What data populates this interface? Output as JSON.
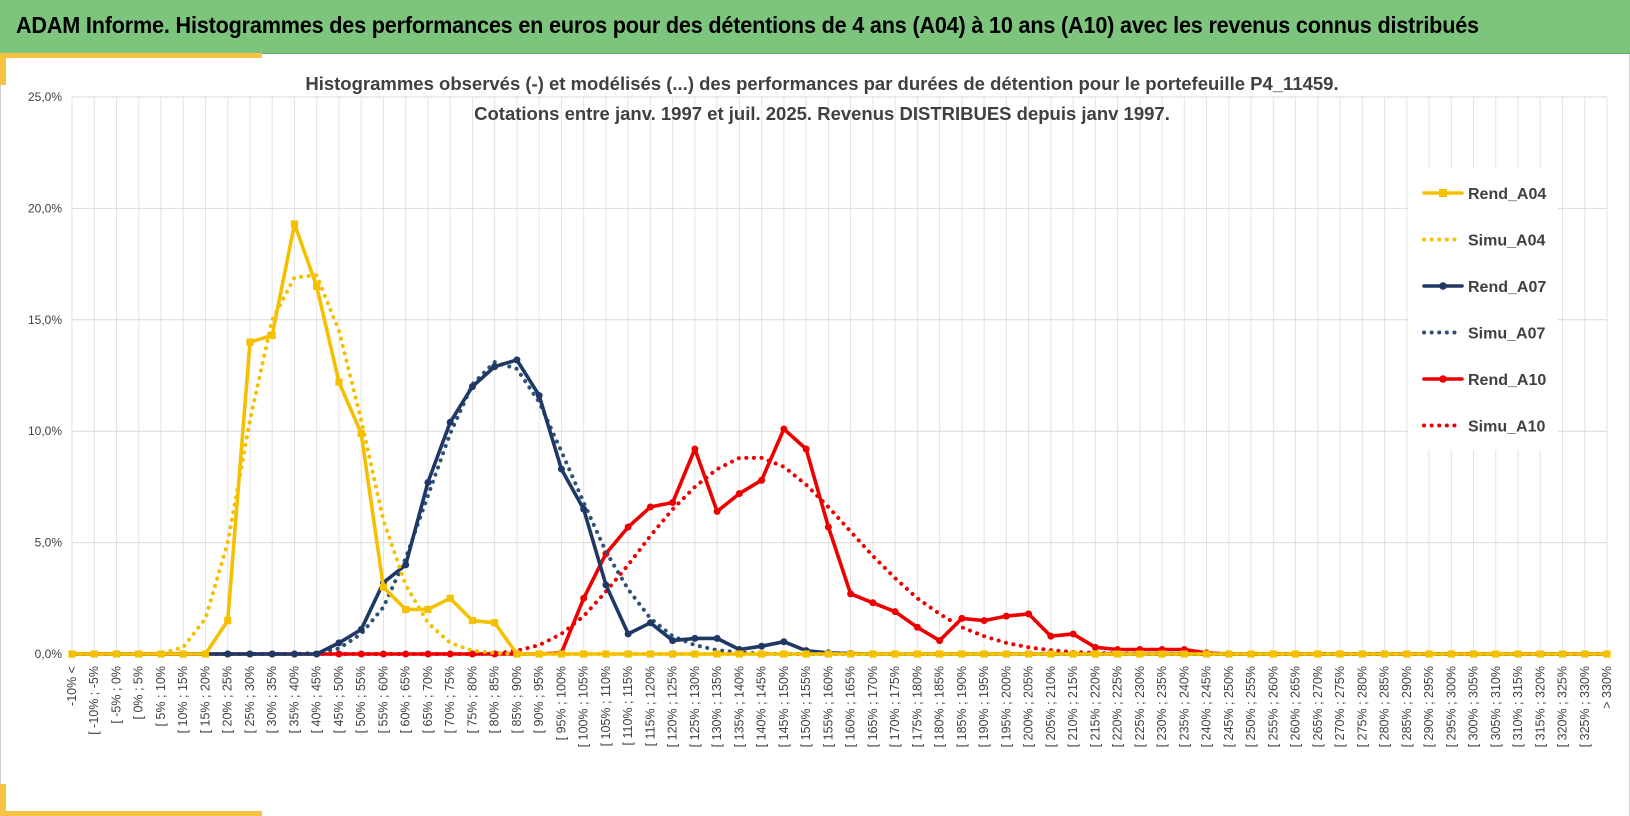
{
  "banner": {
    "title": "ADAM Informe. Histogrammes des performances en euros pour des détentions de 4 ans (A04) à 10 ans (A10) avec les revenus connus distribués"
  },
  "colors": {
    "banner_bg": "#7dc57d",
    "accent": "#f5c242",
    "A04": "#f5c000",
    "A07": "#1f3864",
    "A10": "#ee0000"
  },
  "chart_data": {
    "type": "line",
    "title": [
      "Histogrammes observés (-) et modélisés (...) des performances par durées de détention pour le portefeuille P4_11459.",
      "Cotations entre janv. 1997 et juil. 2025. Revenus DISTRIBUES depuis janv 1997."
    ],
    "xlabel": "",
    "ylabel": "",
    "ylim": [
      0,
      25
    ],
    "yticks": [
      "0,0%",
      "5,0%",
      "10,0%",
      "15,0%",
      "20,0%",
      "25,0%"
    ],
    "grid": true,
    "legend_position": "right",
    "categories": [
      "-10% <",
      "[ -10% ; -5%",
      "[ -5% ; 0%",
      "[ 0% ; 5%",
      "[ 5% ; 10%",
      "[ 10% ; 15%",
      "[ 15% ; 20%",
      "[ 20% ; 25%",
      "[ 25% ; 30%",
      "[ 30% ; 35%",
      "[ 35% ; 40%",
      "[ 40% ; 45%",
      "[ 45% ; 50%",
      "[ 50% ; 55%",
      "[ 55% ; 60%",
      "[ 60% ; 65%",
      "[ 65% ; 70%",
      "[ 70% ; 75%",
      "[ 75% ; 80%",
      "[ 80% ; 85%",
      "[ 85% ; 90%",
      "[ 90% ; 95%",
      "[ 95% ; 100%",
      "[ 100% ; 105%",
      "[ 105% ; 110%",
      "[ 110% ; 115%",
      "[ 115% ; 120%",
      "[ 120% ; 125%",
      "[ 125% ; 130%",
      "[ 130% ; 135%",
      "[ 135% ; 140%",
      "[ 140% ; 145%",
      "[ 145% ; 150%",
      "[ 150% ; 155%",
      "[ 155% ; 160%",
      "[ 160% ; 165%",
      "[ 165% ; 170%",
      "[ 170% ; 175%",
      "[ 175% ; 180%",
      "[ 180% ; 185%",
      "[ 185% ; 190%",
      "[ 190% ; 195%",
      "[ 195% ; 200%",
      "[ 200% ; 205%",
      "[ 205% ; 210%",
      "[ 210% ; 215%",
      "[ 215% ; 220%",
      "[ 220% ; 225%",
      "[ 225% ; 230%",
      "[ 230% ; 235%",
      "[ 235% ; 240%",
      "[ 240% ; 245%",
      "[ 245% ; 250%",
      "[ 250% ; 255%",
      "[ 255% ; 260%",
      "[ 260% ; 265%",
      "[ 265% ; 270%",
      "[ 270% ; 275%",
      "[ 275% ; 280%",
      "[ 280% ; 285%",
      "[ 285% ; 290%",
      "[ 290% ; 295%",
      "[ 295% ; 300%",
      "[ 300% ; 305%",
      "[ 305% ; 310%",
      "[ 310% ; 315%",
      "[ 315% ; 320%",
      "[ 320% ; 325%",
      "[ 325% ; 330%",
      "> 330%"
    ],
    "series": [
      {
        "name": "Rend_A04",
        "style": "solid",
        "color": "#f5c000",
        "marker": "square",
        "values": [
          0,
          0,
          0,
          0,
          0,
          0,
          0,
          1.5,
          14.0,
          14.3,
          19.3,
          16.5,
          12.2,
          9.9,
          3.0,
          2.0,
          2.0,
          2.5,
          1.5,
          1.4,
          0,
          0,
          0,
          0,
          0,
          0,
          0,
          0,
          0,
          0,
          0,
          0,
          0,
          0,
          0,
          0,
          0,
          0,
          0,
          0,
          0,
          0,
          0,
          0,
          0,
          0,
          0,
          0,
          0,
          0,
          0,
          0,
          0,
          0,
          0,
          0,
          0,
          0,
          0,
          0,
          0,
          0,
          0,
          0,
          0,
          0,
          0,
          0,
          0,
          0
        ]
      },
      {
        "name": "Simu_A04",
        "style": "dotted",
        "color": "#f5c000",
        "marker": "none",
        "values": [
          0,
          0,
          0,
          0,
          0.02,
          0.3,
          1.6,
          5.0,
          10.5,
          15.0,
          16.9,
          17.0,
          14.5,
          10.5,
          6.0,
          3.1,
          1.4,
          0.5,
          0.15,
          0.04,
          0,
          0,
          0,
          0,
          0,
          0,
          0,
          0,
          0,
          0,
          0,
          0,
          0,
          0,
          0,
          0,
          0,
          0,
          0,
          0,
          0,
          0,
          0,
          0,
          0,
          0,
          0,
          0,
          0,
          0,
          0,
          0,
          0,
          0,
          0,
          0,
          0,
          0,
          0,
          0,
          0,
          0,
          0,
          0,
          0,
          0,
          0,
          0,
          0,
          0
        ]
      },
      {
        "name": "Rend_A07",
        "style": "solid",
        "color": "#1f3864",
        "marker": "circle",
        "values": [
          0,
          0,
          0,
          0,
          0,
          0,
          0,
          0,
          0,
          0,
          0,
          0,
          0.5,
          1.1,
          3.2,
          4.0,
          7.7,
          10.4,
          12.0,
          12.9,
          13.2,
          11.6,
          8.3,
          6.5,
          3.1,
          0.9,
          1.4,
          0.6,
          0.7,
          0.7,
          0.2,
          0.35,
          0.55,
          0.15,
          0.05,
          0.02,
          0,
          0,
          0,
          0,
          0,
          0,
          0,
          0,
          0,
          0,
          0,
          0,
          0,
          0,
          0,
          0,
          0,
          0,
          0,
          0,
          0,
          0,
          0,
          0,
          0,
          0,
          0,
          0,
          0,
          0,
          0,
          0,
          0,
          0
        ]
      },
      {
        "name": "Simu_A07",
        "style": "dotted",
        "color": "#2e5178",
        "marker": "none",
        "values": [
          0,
          0,
          0,
          0,
          0,
          0,
          0,
          0,
          0,
          0,
          0,
          0.05,
          0.25,
          0.9,
          2.1,
          4.3,
          7.1,
          9.9,
          12.1,
          13.1,
          12.8,
          11.3,
          9.1,
          6.8,
          4.6,
          2.9,
          1.6,
          0.8,
          0.4,
          0.17,
          0.07,
          0.02,
          0,
          0,
          0,
          0,
          0,
          0,
          0,
          0,
          0,
          0,
          0,
          0,
          0,
          0,
          0,
          0,
          0,
          0,
          0,
          0,
          0,
          0,
          0,
          0,
          0,
          0,
          0,
          0,
          0,
          0,
          0,
          0,
          0,
          0,
          0,
          0,
          0,
          0
        ]
      },
      {
        "name": "Rend_A10",
        "style": "solid",
        "color": "#ee0000",
        "marker": "circle",
        "values": [
          0,
          0,
          0,
          0,
          0,
          0,
          0,
          0,
          0,
          0,
          0,
          0,
          0,
          0,
          0,
          0,
          0,
          0,
          0,
          0,
          0,
          0,
          0.05,
          2.5,
          4.5,
          5.7,
          6.6,
          6.8,
          9.2,
          6.4,
          7.2,
          7.8,
          10.1,
          9.2,
          5.7,
          2.7,
          2.3,
          1.9,
          1.2,
          0.6,
          1.6,
          1.5,
          1.7,
          1.8,
          0.8,
          0.9,
          0.3,
          0.2,
          0.2,
          0.2,
          0.2,
          0.05,
          0,
          0,
          0,
          0,
          0,
          0,
          0,
          0,
          0,
          0,
          0,
          0,
          0,
          0,
          0,
          0,
          0,
          0
        ]
      },
      {
        "name": "Simu_A10",
        "style": "dotted",
        "color": "#ee0000",
        "marker": "none",
        "values": [
          0,
          0,
          0,
          0,
          0,
          0,
          0,
          0,
          0,
          0,
          0,
          0,
          0,
          0,
          0,
          0,
          0,
          0,
          0,
          0.02,
          0.15,
          0.4,
          0.9,
          1.7,
          2.8,
          4.0,
          5.3,
          6.5,
          7.5,
          8.3,
          8.8,
          8.8,
          8.4,
          7.6,
          6.6,
          5.5,
          4.4,
          3.4,
          2.5,
          1.8,
          1.2,
          0.8,
          0.5,
          0.3,
          0.17,
          0.09,
          0.05,
          0.02,
          0.01,
          0,
          0,
          0,
          0,
          0,
          0,
          0,
          0,
          0,
          0,
          0,
          0,
          0,
          0,
          0,
          0,
          0,
          0,
          0,
          0,
          0
        ]
      }
    ]
  }
}
